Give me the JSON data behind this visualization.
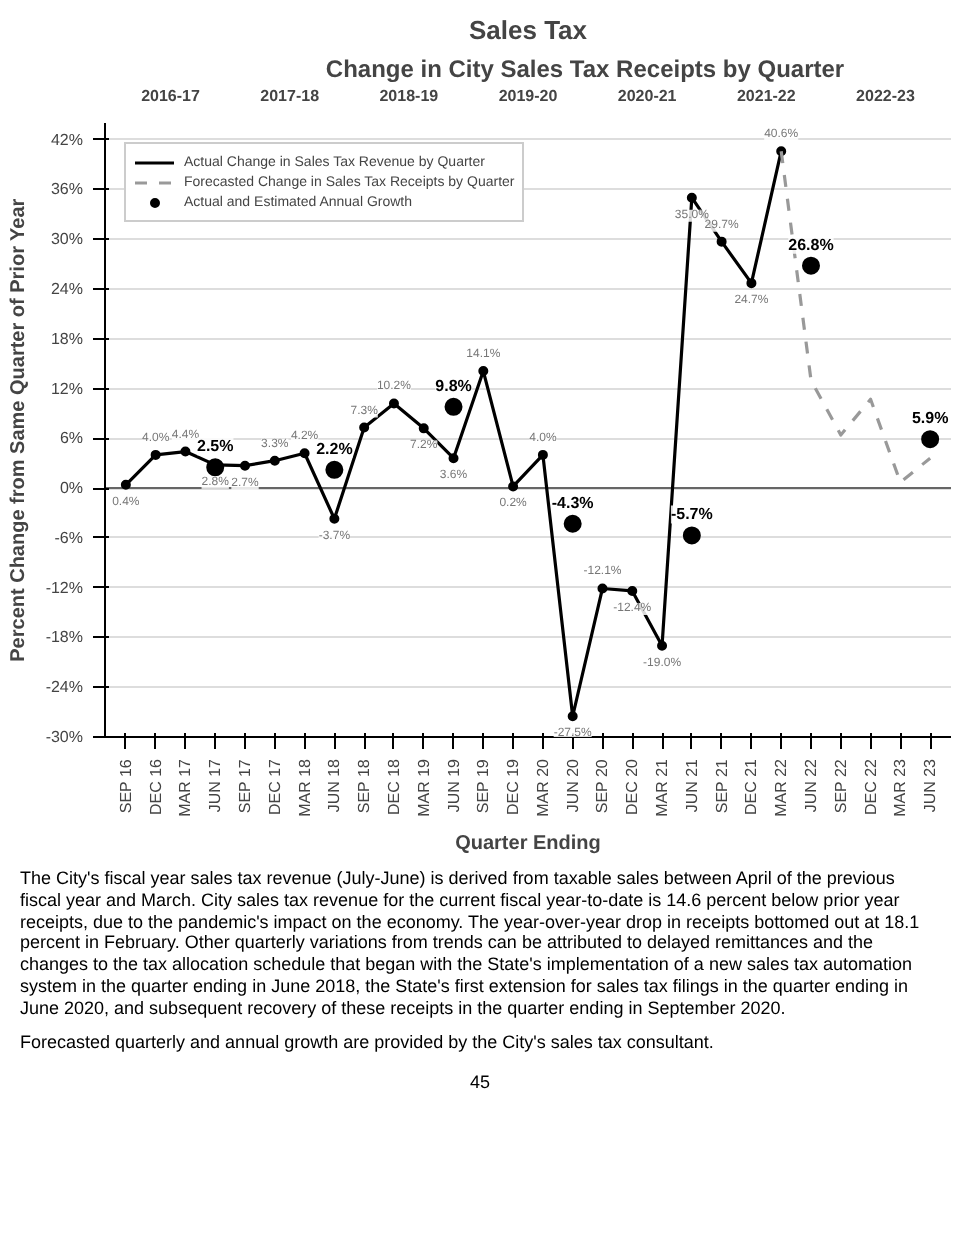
{
  "chart_data": {
    "type": "line",
    "title": "Sales Tax",
    "subtitle": "Change in City Sales Tax Receipts by Quarter",
    "xlabel": "Quarter Ending",
    "ylabel": "Percent Change from Same Quarter of Prior Year",
    "categories": [
      "SEP 16",
      "DEC 16",
      "MAR 17",
      "JUN 17",
      "SEP 17",
      "DEC 17",
      "MAR 18",
      "JUN 18",
      "SEP 18",
      "DEC 18",
      "MAR 19",
      "JUN 19",
      "SEP 19",
      "DEC 19",
      "MAR 20",
      "JUN 20",
      "SEP 20",
      "DEC 20",
      "MAR 21",
      "JUN 21",
      "SEP 21",
      "DEC 21",
      "MAR 22",
      "JUN 22",
      "SEP 22",
      "DEC 22",
      "MAR 23",
      "JUN 23"
    ],
    "series": [
      {
        "name": "Actual Change in Sales Tax Revenue by Quarter",
        "color": "#000000",
        "marker": "circle",
        "line_style": "solid",
        "values": [
          0.4,
          4.0,
          4.4,
          2.8,
          2.7,
          3.3,
          4.2,
          -3.7,
          7.3,
          10.2,
          7.2,
          3.6,
          14.1,
          0.2,
          4.0,
          -27.5,
          -12.1,
          -12.4,
          -19.0,
          35.0,
          29.7,
          24.7,
          40.6,
          null,
          null,
          null,
          null,
          null
        ],
        "value_labels": [
          "0.4%",
          "4.0%",
          "4.4%",
          "2.8%",
          "2.7%",
          "3.3%",
          "4.2%",
          "-3.7%",
          "7.3%",
          "10.2%",
          "7.2%",
          "3.6%",
          "14.1%",
          "0.2%",
          "4.0%",
          "-27.5%",
          "-12.1%",
          "-12.4%",
          "-19.0%",
          "35.0%",
          "29.7%",
          "24.7%",
          "40.6%",
          null,
          null,
          null,
          null,
          null
        ]
      },
      {
        "name": "Forecasted Change in Sales Tax Receipts by Quarter",
        "color": "#999999",
        "marker": "none",
        "line_style": "dashed",
        "values": [
          null,
          null,
          null,
          null,
          null,
          null,
          null,
          null,
          null,
          null,
          null,
          null,
          null,
          null,
          null,
          null,
          null,
          null,
          null,
          null,
          null,
          null,
          40.6,
          13.0,
          6.4,
          10.7,
          0.7,
          3.6
        ]
      },
      {
        "name": "Actual and Estimated Annual Growth",
        "type": "scatter",
        "color": "#000000",
        "marker": "circle",
        "values": [
          null,
          null,
          null,
          2.5,
          null,
          null,
          null,
          2.2,
          null,
          null,
          null,
          9.8,
          null,
          null,
          null,
          -4.3,
          null,
          null,
          null,
          -5.7,
          null,
          null,
          null,
          26.8,
          null,
          null,
          null,
          5.9
        ],
        "value_labels": [
          null,
          null,
          null,
          "2.5%",
          null,
          null,
          null,
          "2.2%",
          null,
          null,
          null,
          "9.8%",
          null,
          null,
          null,
          "-4.3%",
          null,
          null,
          null,
          "-5.7%",
          null,
          null,
          null,
          "26.8%",
          null,
          null,
          null,
          "5.9%"
        ]
      }
    ],
    "ylim": [
      -30,
      44
    ],
    "yticks": [
      {
        "value": -30,
        "label": "-30%"
      },
      {
        "value": -24,
        "label": "-24%"
      },
      {
        "value": -18,
        "label": "-18%"
      },
      {
        "value": -12,
        "label": "-12%"
      },
      {
        "value": -6,
        "label": "-6%"
      },
      {
        "value": 0,
        "label": "0%"
      },
      {
        "value": 6,
        "label": "6%"
      },
      {
        "value": 12,
        "label": "12%"
      },
      {
        "value": 18,
        "label": "18%"
      },
      {
        "value": 24,
        "label": "24%"
      },
      {
        "value": 30,
        "label": "30%"
      },
      {
        "value": 36,
        "label": "36%"
      },
      {
        "value": 42,
        "label": "42%"
      }
    ],
    "grid": "y",
    "legend": "top left",
    "annotations": [
      "2016-17",
      "2017-18",
      "2018-19",
      "2019-20",
      "2020-21",
      "2021-22",
      "2022-23",
      "The City's fiscal year sales tax revenue (July-June) is derived from taxable sales between April of the previous fiscal year and March. City sales tax revenue for the current fiscal year-to-date is 14.6 percent below prior year receipts, due to the pandemic's impact on the economy. The year-over-year drop in receipts bottomed out at 18.1 percent in February. Other quarterly variations from trends can be attributed to delayed remittances and the changes to the tax allocation schedule that began with the State's implementation of a new sales tax automation system in the quarter ending in June 2018, the State's first extension for sales tax filings in the quarter ending in June 2020, and subsequent recovery of these receipts in the quarter ending in September 2020.",
      "Forecasted quarterly and annual growth are provided by the City's sales tax consultant.",
      "45"
    ]
  }
}
